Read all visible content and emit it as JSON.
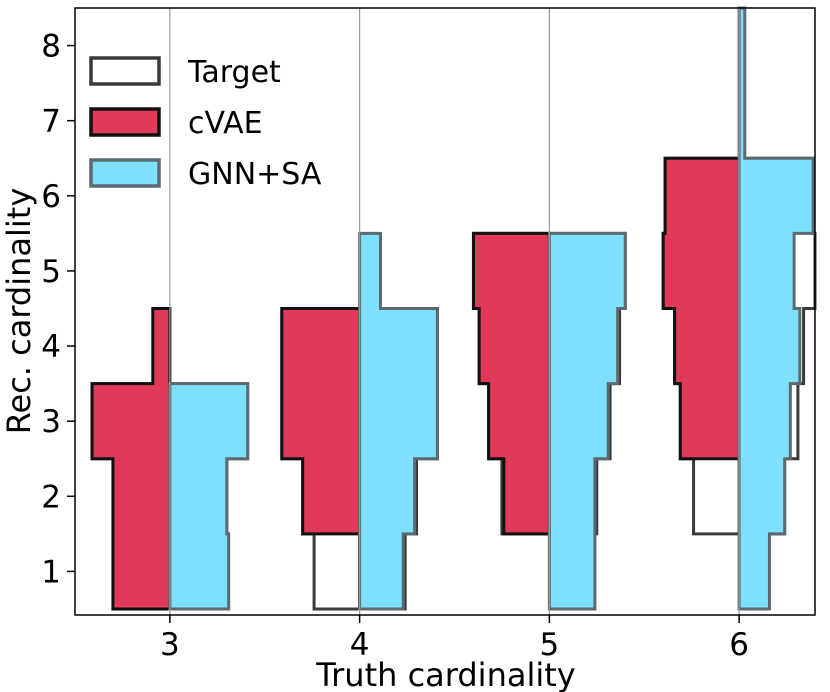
{
  "chart_data": {
    "type": "violin-histogram",
    "title": "",
    "xlabel": "Truth cardinality",
    "ylabel": "Rec. cardinality",
    "xlim": [
      2.5,
      6.4
    ],
    "ylim": [
      0.42,
      8.5
    ],
    "x_ticks": [
      3,
      4,
      5,
      6
    ],
    "y_ticks": [
      1,
      2,
      3,
      4,
      5,
      6,
      7,
      8
    ],
    "groups": [
      {
        "truth": 3,
        "target": [
          {
            "y": 1,
            "w": 0.3
          },
          {
            "y": 2,
            "w": 0.3
          },
          {
            "y": 3,
            "w": 0.41
          }
        ],
        "cvae": [
          {
            "y": 1,
            "w": 0.3
          },
          {
            "y": 2,
            "w": 0.3
          },
          {
            "y": 3,
            "w": 0.41
          },
          {
            "y": 4,
            "w": 0.09
          }
        ],
        "gnn_sa": [
          {
            "y": 1,
            "w": 0.31
          },
          {
            "y": 2,
            "w": 0.3
          },
          {
            "y": 3,
            "w": 0.41
          }
        ]
      },
      {
        "truth": 4,
        "target": [
          {
            "y": 1,
            "w": 0.24
          },
          {
            "y": 2,
            "w": 0.3
          },
          {
            "y": 3,
            "w": 0.41
          },
          {
            "y": 4,
            "w": 0.41
          }
        ],
        "cvae": [
          {
            "y": 2,
            "w": 0.3
          },
          {
            "y": 3,
            "w": 0.41
          },
          {
            "y": 4,
            "w": 0.41
          }
        ],
        "gnn_sa": [
          {
            "y": 1,
            "w": 0.23
          },
          {
            "y": 2,
            "w": 0.29
          },
          {
            "y": 3,
            "w": 0.41
          },
          {
            "y": 4,
            "w": 0.41
          },
          {
            "y": 5,
            "w": 0.11
          }
        ]
      },
      {
        "truth": 5,
        "target": [
          {
            "y": 2,
            "w": 0.25
          },
          {
            "y": 3,
            "w": 0.32
          },
          {
            "y": 4,
            "w": 0.37
          },
          {
            "y": 5,
            "w": 0.4
          }
        ],
        "cvae": [
          {
            "y": 2,
            "w": 0.24
          },
          {
            "y": 3,
            "w": 0.32
          },
          {
            "y": 4,
            "w": 0.37
          },
          {
            "y": 5,
            "w": 0.4
          }
        ],
        "gnn_sa": [
          {
            "y": 1,
            "w": 0.24
          },
          {
            "y": 2,
            "w": 0.24
          },
          {
            "y": 3,
            "w": 0.31
          },
          {
            "y": 4,
            "w": 0.36
          },
          {
            "y": 5,
            "w": 0.4
          }
        ]
      },
      {
        "truth": 6,
        "target": [
          {
            "y": 2,
            "w": 0.24
          },
          {
            "y": 3,
            "w": 0.31
          },
          {
            "y": 4,
            "w": 0.34
          },
          {
            "y": 5,
            "w": 0.4
          },
          {
            "y": 6,
            "w": 0.39
          }
        ],
        "cvae": [
          {
            "y": 3,
            "w": 0.31
          },
          {
            "y": 4,
            "w": 0.34
          },
          {
            "y": 5,
            "w": 0.4
          },
          {
            "y": 6,
            "w": 0.39
          }
        ],
        "gnn_sa": [
          {
            "y": 1,
            "w": 0.16
          },
          {
            "y": 2,
            "w": 0.24
          },
          {
            "y": 3,
            "w": 0.27
          },
          {
            "y": 4,
            "w": 0.32
          },
          {
            "y": 5,
            "w": 0.29
          },
          {
            "y": 6,
            "w": 0.39
          },
          {
            "y": 7,
            "w": 0.03
          },
          {
            "y": 8,
            "w": 0.03
          }
        ]
      }
    ],
    "legend": [
      {
        "key": "target",
        "label": "Target",
        "fill": "#ffffff",
        "stroke": "#3a3a3a"
      },
      {
        "key": "cvae",
        "label": "cVAE",
        "fill": "#e0395a",
        "stroke": "#111111"
      },
      {
        "key": "gnn_sa",
        "label": "GNN+SA",
        "fill": "#7fe0fd",
        "stroke": "#5a6a70"
      }
    ],
    "legend_position": "top-left",
    "colors": {
      "cvae_fill": "#e0395a",
      "gnn_fill": "#7fe0fd",
      "target_stroke": "#3a3a3a",
      "cvae_stroke": "#111111",
      "gnn_stroke": "#5a6a70",
      "center_line": "#9a9a9a"
    }
  }
}
